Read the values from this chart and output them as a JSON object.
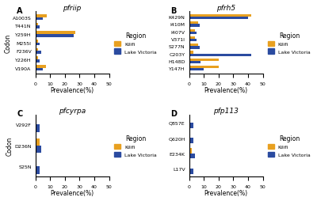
{
  "panels": [
    {
      "label": "A",
      "title": "pfriip",
      "codons": [
        "A1003S",
        "T441N",
        "Y259H",
        "M255I",
        "F236V",
        "Y226H",
        "V190A"
      ],
      "kilifi": [
        8,
        2,
        27,
        2,
        2,
        2,
        7
      ],
      "lake_victoria": [
        5,
        3,
        26,
        3,
        4,
        3,
        5
      ]
    },
    {
      "label": "B",
      "title": "pfrh5",
      "codons": [
        "K429N",
        "I410M",
        "I407V",
        "V371I",
        "S277N",
        "C203Y",
        "H148D",
        "Y147H"
      ],
      "kilifi": [
        42,
        6,
        4,
        4,
        6,
        3,
        20,
        20
      ],
      "lake_victoria": [
        40,
        7,
        5,
        5,
        7,
        42,
        8,
        10
      ]
    },
    {
      "label": "C",
      "title": "pfcyrpa",
      "codons": [
        "V292F",
        "D236N",
        "S25N"
      ],
      "kilifi": [
        0,
        3,
        0
      ],
      "lake_victoria": [
        3,
        4,
        3
      ]
    },
    {
      "label": "D",
      "title": "pfp113",
      "codons": [
        "Q857E",
        "Q620H",
        "E234K",
        "L17V"
      ],
      "kilifi": [
        0,
        0,
        2,
        0
      ],
      "lake_victoria": [
        3,
        3,
        4,
        3
      ]
    }
  ],
  "kilifi_color": "#E8A020",
  "lake_victoria_color": "#2B4BA0",
  "xlim": [
    0,
    50
  ],
  "xticks": [
    0,
    10,
    20,
    30,
    40,
    50
  ],
  "xlabel": "Prevalence(%)",
  "ylabel": "Codon",
  "bar_height": 0.35,
  "background_color": "#ffffff",
  "legend_title": "Region",
  "legend_labels": [
    "Kilifi",
    "Lake Victoria"
  ]
}
